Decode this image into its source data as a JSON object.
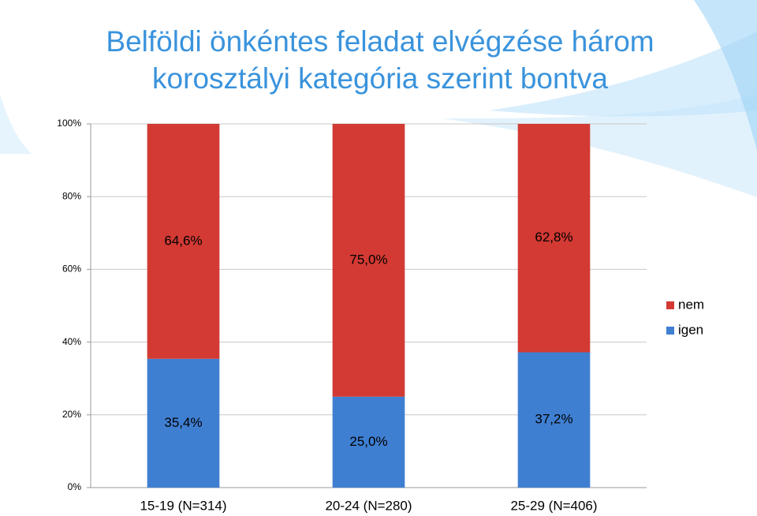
{
  "chart_data": {
    "type": "stacked_bar",
    "title": [
      "Belföldi önkéntes feladat elvégzése három",
      "korosztályi kategória szerint bontva"
    ],
    "categories": [
      "15-19 (N=314)",
      "20-24 (N=280)",
      "25-29 (N=406)"
    ],
    "series": [
      {
        "name": "igen",
        "color": "#3f7fd2",
        "values": [
          35.4,
          25.0,
          37.2
        ],
        "value_labels": [
          "35,4%",
          "25,0%",
          "37,2%"
        ]
      },
      {
        "name": "nem",
        "color": "#d23a33",
        "values": [
          64.6,
          75.0,
          62.8
        ],
        "value_labels": [
          "64,6%",
          "75,0%",
          "62,8%"
        ]
      }
    ],
    "ylim": [
      0,
      100
    ],
    "yticks": [
      {
        "value": 0,
        "label": "0%"
      },
      {
        "value": 20,
        "label": "20%"
      },
      {
        "value": 40,
        "label": "40%"
      },
      {
        "value": 60,
        "label": "60%"
      },
      {
        "value": 80,
        "label": "80%"
      },
      {
        "value": 100,
        "label": "100%"
      }
    ],
    "grid": true,
    "legend": "right"
  }
}
